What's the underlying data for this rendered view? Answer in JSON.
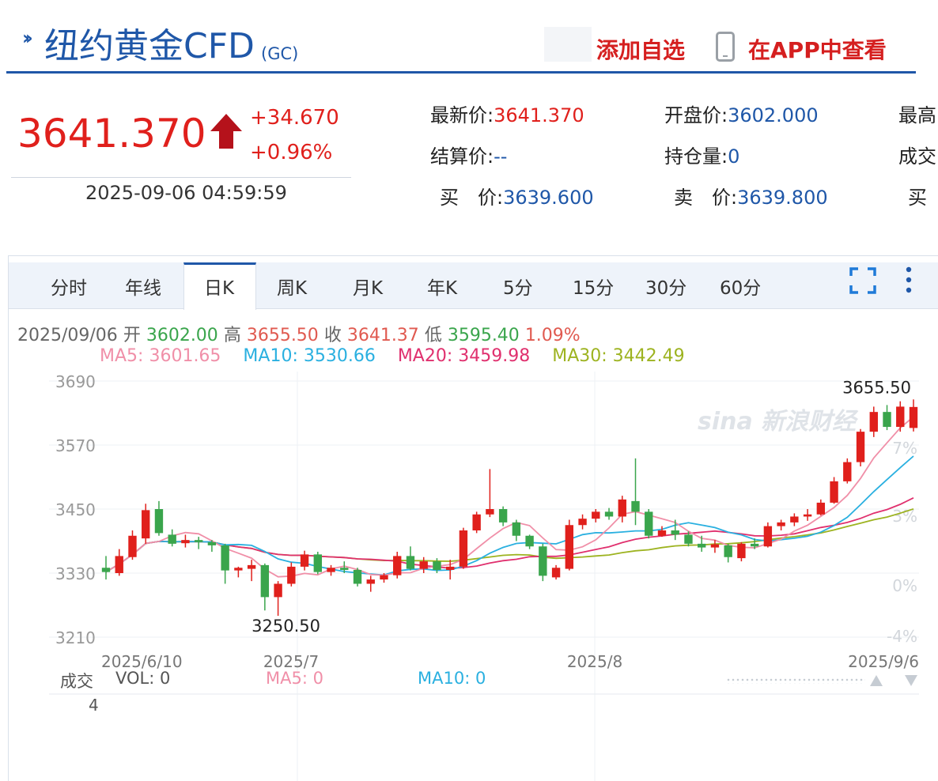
{
  "header": {
    "title": "纽约黄金CFD",
    "code": "(GC)",
    "add_watch": "添加自选",
    "app_view": "在APP中查看"
  },
  "quote": {
    "price": "3641.370",
    "change": "+34.670",
    "change_pct": "+0.96%",
    "time": "2025-09-06 04:59:59",
    "latest_label": "最新价:",
    "latest": "3641.370",
    "open_label": "开盘价:",
    "open": "3602.000",
    "high_label_cut": "最高",
    "settle_label": "结算价:",
    "settle": "--",
    "oi_label": "持仓量:",
    "oi": "0",
    "volume_label_cut": "成交",
    "bid_label": "买　价:",
    "bid": "3639.600",
    "ask_label": "卖　价:",
    "ask": "3639.800",
    "buy_cut": "买"
  },
  "tabs": [
    "分时",
    "年线",
    "日K",
    "周K",
    "月K",
    "年K",
    "5分",
    "15分",
    "30分",
    "60分"
  ],
  "active_tab": "日K",
  "info": {
    "date": "2025/09/06",
    "open_label": "开",
    "open": "3602.00",
    "high_label": "高",
    "high": "3655.50",
    "close_label": "收",
    "close": "3641.37",
    "low_label": "低",
    "low": "3595.40",
    "pct": "1.09%"
  },
  "ma": {
    "ma5_label": "MA5:",
    "ma5": "3601.65",
    "ma10_label": "MA10:",
    "ma10": "3530.66",
    "ma20_label": "MA20:",
    "ma20": "3459.98",
    "ma30_label": "MA30:",
    "ma30": "3442.49"
  },
  "volume": {
    "label": "成交",
    "vol_label": "VOL:",
    "vol": "0",
    "ma5_label": "MA5:",
    "ma5": "0",
    "ma10_label": "MA10:",
    "ma10": "0",
    "axis": "4"
  },
  "chart_data": {
    "type": "candlestick",
    "ylim": [
      3210,
      3690
    ],
    "y_ticks": [
      3690,
      3570,
      3450,
      3330,
      3210
    ],
    "right_ticks": [
      "7%",
      "3%",
      "0%",
      "-4%"
    ],
    "x_labels": [
      "2025/6/10",
      "2025/7",
      "2025/8",
      "2025/9/6"
    ],
    "max_label": "3655.50",
    "min_label": "3250.50",
    "colors": {
      "up": "#e0201c",
      "down": "#3aa54c",
      "ma5": "#f08fa8",
      "ma10": "#2ab0e0",
      "ma20": "#e0306e",
      "ma30": "#9db320"
    },
    "candles": [
      {
        "o": 3340,
        "h": 3362,
        "l": 3318,
        "c": 3332
      },
      {
        "o": 3330,
        "h": 3375,
        "l": 3325,
        "c": 3362
      },
      {
        "o": 3360,
        "h": 3410,
        "l": 3355,
        "c": 3400
      },
      {
        "o": 3395,
        "h": 3460,
        "l": 3385,
        "c": 3448
      },
      {
        "o": 3450,
        "h": 3465,
        "l": 3400,
        "c": 3405
      },
      {
        "o": 3402,
        "h": 3412,
        "l": 3380,
        "c": 3385
      },
      {
        "o": 3386,
        "h": 3402,
        "l": 3378,
        "c": 3392
      },
      {
        "o": 3392,
        "h": 3398,
        "l": 3375,
        "c": 3388
      },
      {
        "o": 3388,
        "h": 3392,
        "l": 3370,
        "c": 3382
      },
      {
        "o": 3382,
        "h": 3385,
        "l": 3310,
        "c": 3335
      },
      {
        "o": 3335,
        "h": 3342,
        "l": 3322,
        "c": 3340
      },
      {
        "o": 3338,
        "h": 3355,
        "l": 3315,
        "c": 3345
      },
      {
        "o": 3345,
        "h": 3348,
        "l": 3260,
        "c": 3285
      },
      {
        "o": 3285,
        "h": 3315,
        "l": 3250,
        "c": 3310
      },
      {
        "o": 3310,
        "h": 3350,
        "l": 3305,
        "c": 3342
      },
      {
        "o": 3342,
        "h": 3372,
        "l": 3335,
        "c": 3365
      },
      {
        "o": 3365,
        "h": 3370,
        "l": 3328,
        "c": 3332
      },
      {
        "o": 3332,
        "h": 3345,
        "l": 3325,
        "c": 3340
      },
      {
        "o": 3340,
        "h": 3352,
        "l": 3330,
        "c": 3336
      },
      {
        "o": 3336,
        "h": 3340,
        "l": 3305,
        "c": 3310
      },
      {
        "o": 3310,
        "h": 3325,
        "l": 3295,
        "c": 3318
      },
      {
        "o": 3318,
        "h": 3330,
        "l": 3312,
        "c": 3326
      },
      {
        "o": 3326,
        "h": 3370,
        "l": 3320,
        "c": 3362
      },
      {
        "o": 3362,
        "h": 3380,
        "l": 3335,
        "c": 3338
      },
      {
        "o": 3338,
        "h": 3360,
        "l": 3330,
        "c": 3352
      },
      {
        "o": 3352,
        "h": 3358,
        "l": 3330,
        "c": 3336
      },
      {
        "o": 3336,
        "h": 3355,
        "l": 3318,
        "c": 3342
      },
      {
        "o": 3342,
        "h": 3415,
        "l": 3338,
        "c": 3410
      },
      {
        "o": 3410,
        "h": 3445,
        "l": 3405,
        "c": 3440
      },
      {
        "o": 3440,
        "h": 3525,
        "l": 3435,
        "c": 3450
      },
      {
        "o": 3450,
        "h": 3455,
        "l": 3418,
        "c": 3425
      },
      {
        "o": 3425,
        "h": 3430,
        "l": 3390,
        "c": 3400
      },
      {
        "o": 3400,
        "h": 3402,
        "l": 3375,
        "c": 3380
      },
      {
        "o": 3380,
        "h": 3385,
        "l": 3315,
        "c": 3325
      },
      {
        "o": 3322,
        "h": 3345,
        "l": 3318,
        "c": 3340
      },
      {
        "o": 3338,
        "h": 3430,
        "l": 3335,
        "c": 3420
      },
      {
        "o": 3420,
        "h": 3440,
        "l": 3412,
        "c": 3432
      },
      {
        "o": 3432,
        "h": 3450,
        "l": 3425,
        "c": 3445
      },
      {
        "o": 3445,
        "h": 3452,
        "l": 3430,
        "c": 3436
      },
      {
        "o": 3436,
        "h": 3475,
        "l": 3425,
        "c": 3468
      },
      {
        "o": 3465,
        "h": 3545,
        "l": 3420,
        "c": 3445
      },
      {
        "o": 3445,
        "h": 3450,
        "l": 3395,
        "c": 3400
      },
      {
        "o": 3400,
        "h": 3418,
        "l": 3398,
        "c": 3410
      },
      {
        "o": 3410,
        "h": 3430,
        "l": 3392,
        "c": 3402
      },
      {
        "o": 3402,
        "h": 3408,
        "l": 3380,
        "c": 3385
      },
      {
        "o": 3385,
        "h": 3400,
        "l": 3370,
        "c": 3378
      },
      {
        "o": 3378,
        "h": 3392,
        "l": 3368,
        "c": 3384
      },
      {
        "o": 3382,
        "h": 3385,
        "l": 3350,
        "c": 3360
      },
      {
        "o": 3358,
        "h": 3388,
        "l": 3352,
        "c": 3385
      },
      {
        "o": 3385,
        "h": 3395,
        "l": 3375,
        "c": 3380
      },
      {
        "o": 3380,
        "h": 3425,
        "l": 3378,
        "c": 3418
      },
      {
        "o": 3418,
        "h": 3430,
        "l": 3410,
        "c": 3425
      },
      {
        "o": 3425,
        "h": 3442,
        "l": 3418,
        "c": 3436
      },
      {
        "o": 3436,
        "h": 3450,
        "l": 3428,
        "c": 3440
      },
      {
        "o": 3440,
        "h": 3468,
        "l": 3438,
        "c": 3462
      },
      {
        "o": 3462,
        "h": 3510,
        "l": 3460,
        "c": 3502
      },
      {
        "o": 3502,
        "h": 3545,
        "l": 3498,
        "c": 3538
      },
      {
        "o": 3538,
        "h": 3600,
        "l": 3530,
        "c": 3595
      },
      {
        "o": 3595,
        "h": 3642,
        "l": 3585,
        "c": 3632
      },
      {
        "o": 3632,
        "h": 3645,
        "l": 3598,
        "c": 3604
      },
      {
        "o": 3604,
        "h": 3652,
        "l": 3595,
        "c": 3642
      },
      {
        "o": 3602,
        "h": 3655.5,
        "l": 3595.4,
        "c": 3641.37
      }
    ]
  }
}
